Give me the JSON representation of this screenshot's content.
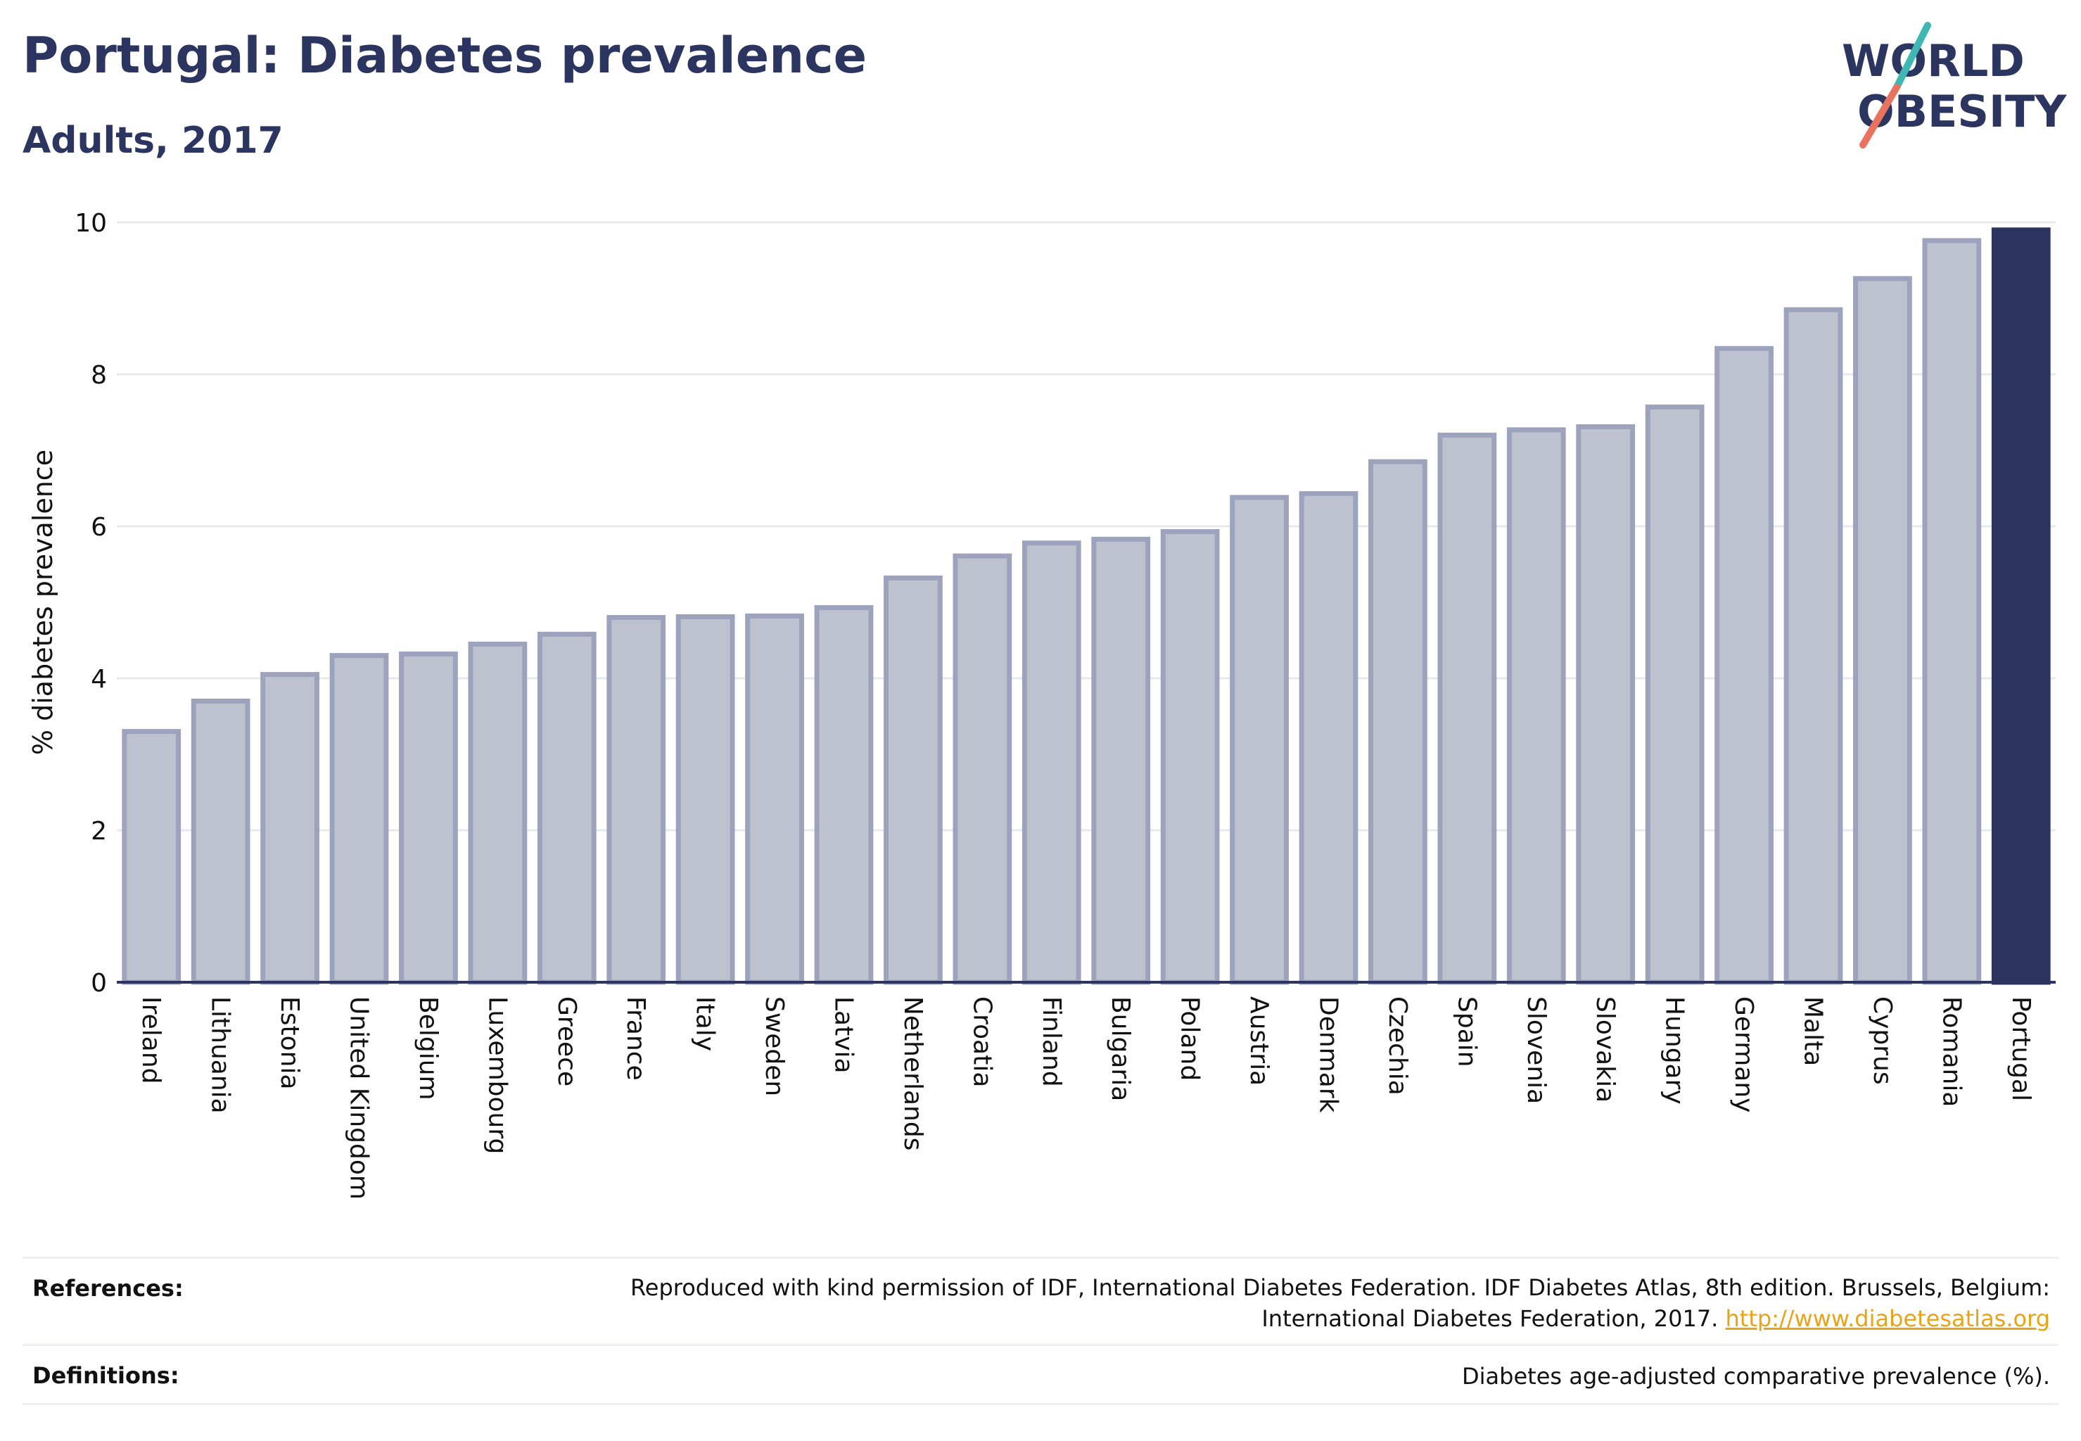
{
  "header": {
    "title": "Portugal: Diabetes prevalence",
    "subtitle": "Adults, 2017"
  },
  "logo": {
    "line1": "WORLD",
    "line2": "OBESITY",
    "colors": {
      "text": "#2b3560",
      "slash_teal": "#3fb8b3",
      "slash_coral": "#e8735f"
    }
  },
  "chart_data": {
    "type": "bar",
    "ylabel": "% diabetes prevalence",
    "xlabel": "",
    "ylim": [
      0,
      10
    ],
    "yticks": [
      0,
      2,
      4,
      6,
      8,
      10
    ],
    "grid": true,
    "legend": "none",
    "colors": {
      "bar_fill": "#bec2ce",
      "bar_stroke": "#9da3bc",
      "highlight": "#2b3560",
      "grid": "#e6e8ee",
      "axis": "#2b3560"
    },
    "highlight_category": "Portugal",
    "categories": [
      "Ireland",
      "Lithuania",
      "Estonia",
      "United Kingdom",
      "Belgium",
      "Luxembourg",
      "Greece",
      "France",
      "Italy",
      "Sweden",
      "Latvia",
      "Netherlands",
      "Croatia",
      "Finland",
      "Bulgaria",
      "Poland",
      "Austria",
      "Denmark",
      "Czechia",
      "Spain",
      "Slovenia",
      "Slovakia",
      "Hungary",
      "Germany",
      "Malta",
      "Cyprus",
      "Romania",
      "Portugal"
    ],
    "values": [
      3.3,
      3.7,
      4.05,
      4.3,
      4.32,
      4.45,
      4.58,
      4.8,
      4.81,
      4.82,
      4.93,
      5.32,
      5.61,
      5.78,
      5.83,
      5.93,
      6.38,
      6.43,
      6.85,
      7.2,
      7.27,
      7.31,
      7.57,
      8.34,
      8.85,
      9.26,
      9.76,
      9.9
    ]
  },
  "footer": {
    "references_label": "References:",
    "references_text_line1": "Reproduced with kind permission of IDF, International Diabetes Federation. IDF Diabetes Atlas, 8th edition. Brussels, Belgium:",
    "references_text_line2": "International Diabetes Federation, 2017.",
    "references_link": "http://www.diabetesatlas.org",
    "definitions_label": "Definitions:",
    "definitions_text": "Diabetes age-adjusted comparative prevalence (%)."
  }
}
